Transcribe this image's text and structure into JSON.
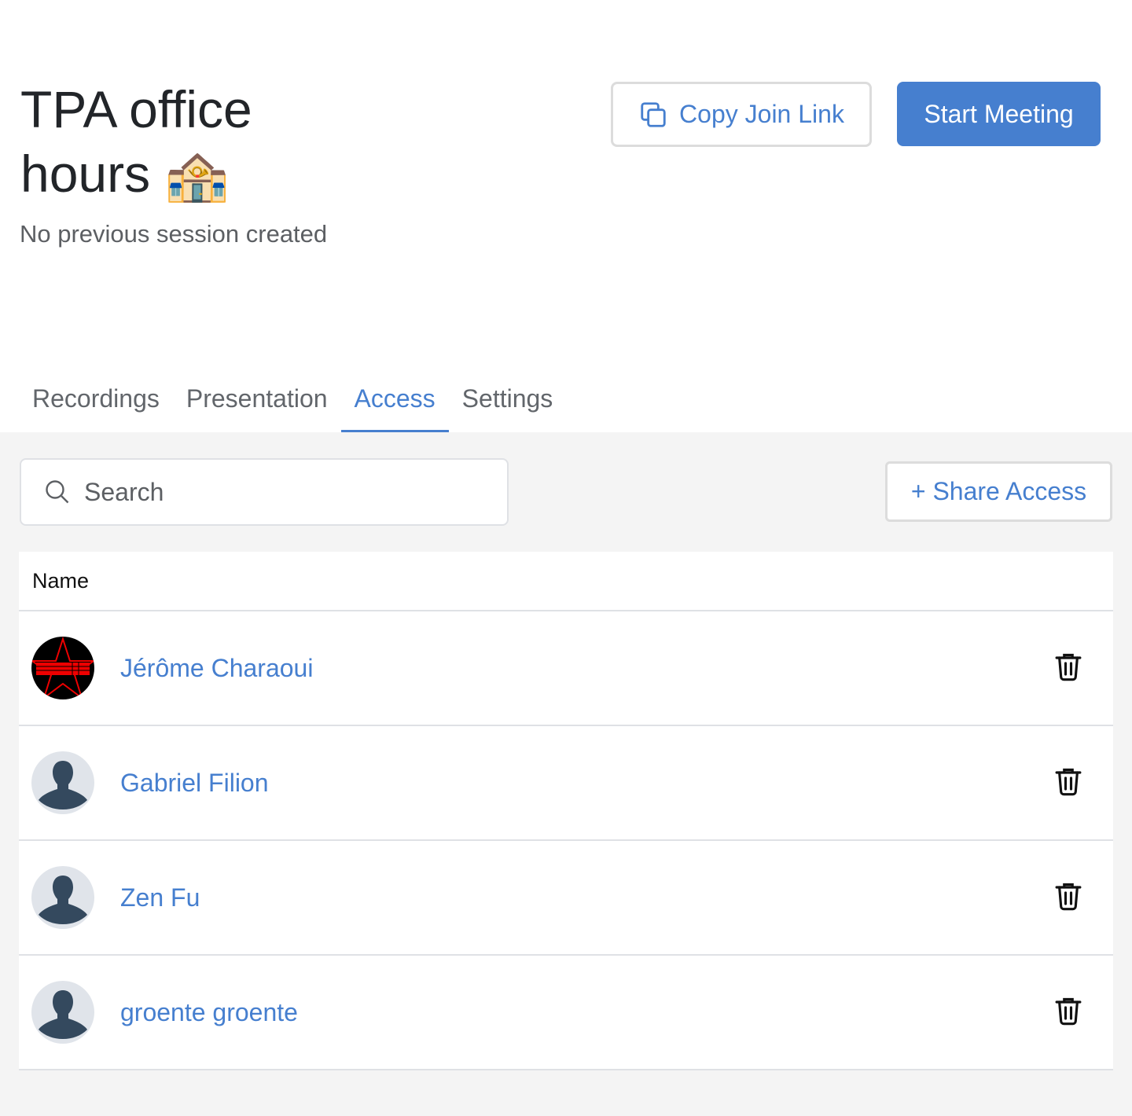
{
  "header": {
    "title": "TPA office hours",
    "title_emoji": "🏤",
    "subtitle": "No previous session created",
    "copy_link_label": "Copy Join Link",
    "start_meeting_label": "Start Meeting"
  },
  "tabs": [
    {
      "label": "Recordings"
    },
    {
      "label": "Presentation"
    },
    {
      "label": "Access",
      "active": true
    },
    {
      "label": "Settings"
    }
  ],
  "toolbar": {
    "search_placeholder": "Search",
    "search_value": "",
    "share_label": "+ Share Access"
  },
  "table": {
    "column": "Name",
    "rows": [
      {
        "name": "Jérôme Charaoui",
        "avatar": "custom-keyboard-star"
      },
      {
        "name": "Gabriel Filion",
        "avatar": "default-silhouette"
      },
      {
        "name": "Zen Fu",
        "avatar": "default-silhouette"
      },
      {
        "name": "groente groente",
        "avatar": "default-silhouette"
      }
    ]
  },
  "colors": {
    "accent": "#467fcf",
    "background": "#f4f4f4"
  }
}
